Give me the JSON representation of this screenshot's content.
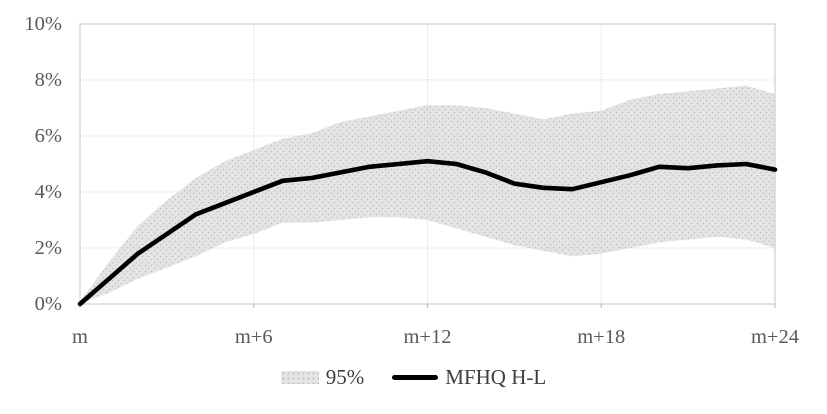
{
  "chart_data": {
    "type": "line",
    "title": "",
    "xlabel": "",
    "ylabel": "",
    "categories": [
      "m",
      "m+1",
      "m+2",
      "m+3",
      "m+4",
      "m+5",
      "m+6",
      "m+7",
      "m+8",
      "m+9",
      "m+10",
      "m+11",
      "m+12",
      "m+13",
      "m+14",
      "m+15",
      "m+16",
      "m+17",
      "m+18",
      "m+19",
      "m+20",
      "m+21",
      "m+22",
      "m+23",
      "m+24"
    ],
    "x_tick_indices": [
      0,
      6,
      12,
      18,
      24
    ],
    "x_tick_labels": [
      "m",
      "m+6",
      "m+12",
      "m+18",
      "m+24"
    ],
    "ylim": [
      0,
      10
    ],
    "y_tick_labels": [
      "0%",
      "2%",
      "4%",
      "6%",
      "8%",
      "10%"
    ],
    "y_tick_values": [
      0,
      2,
      4,
      6,
      8,
      10
    ],
    "grid": "on",
    "legend_position": "bottom",
    "series": [
      {
        "name": "MFHQ H-L",
        "kind": "line",
        "color": "#000000",
        "values": [
          0.0,
          0.9,
          1.8,
          2.5,
          3.2,
          3.6,
          4.0,
          4.4,
          4.5,
          4.7,
          4.9,
          5.0,
          5.1,
          5.0,
          4.7,
          4.3,
          4.15,
          4.1,
          4.35,
          4.6,
          4.9,
          4.85,
          4.95,
          5.0,
          4.8
        ]
      }
    ],
    "band": {
      "name": "95%",
      "upper": [
        0.1,
        1.5,
        2.8,
        3.7,
        4.5,
        5.1,
        5.5,
        5.9,
        6.1,
        6.5,
        6.7,
        6.9,
        7.1,
        7.1,
        7.0,
        6.8,
        6.6,
        6.8,
        6.9,
        7.3,
        7.5,
        7.6,
        7.7,
        7.8,
        7.5
      ],
      "lower": [
        0.0,
        0.4,
        0.9,
        1.3,
        1.7,
        2.2,
        2.5,
        2.9,
        2.9,
        3.0,
        3.1,
        3.1,
        3.0,
        2.7,
        2.4,
        2.1,
        1.9,
        1.7,
        1.8,
        2.0,
        2.2,
        2.3,
        2.4,
        2.3,
        2.0
      ]
    },
    "colors": {
      "band_fill": "#e4e4e4",
      "band_dots": "#c0c0c0",
      "line": "#000000",
      "gridline": "#d2d2d2",
      "border": "#cfcfcf",
      "tick": "#bfbfbf",
      "axis_text": "#595959"
    }
  },
  "legend": {
    "items": [
      {
        "label": "95%"
      },
      {
        "label": "MFHQ H-L"
      }
    ]
  }
}
